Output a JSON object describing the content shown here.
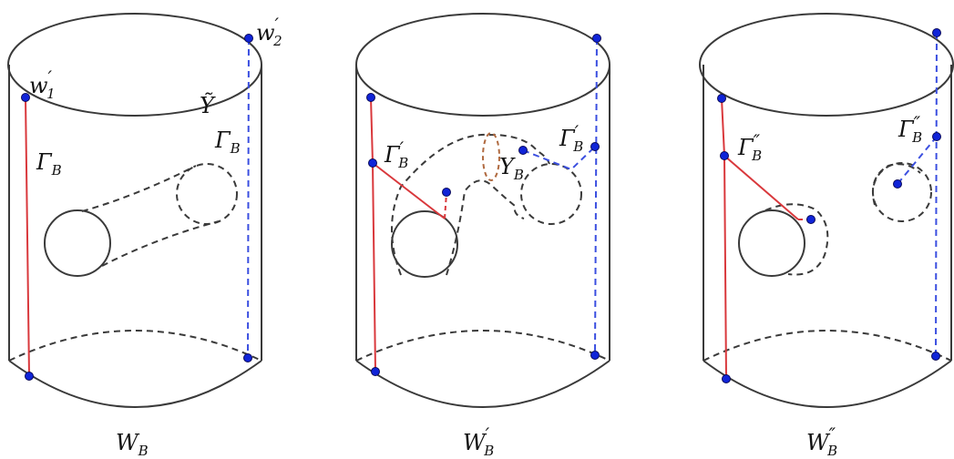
{
  "panels": [
    {
      "caption": "W",
      "caption_sub": "B",
      "caption_prime": "",
      "labels": {
        "w1": "w",
        "w1_sub": "1",
        "w2": "w",
        "w2_sub": "2",
        "y_tilde": "Ỹ",
        "gamma_left": "Γ",
        "gamma_left_sub": "B",
        "gamma_right": "Γ",
        "gamma_right_sub": "B"
      }
    },
    {
      "caption": "W",
      "caption_sub": "B",
      "caption_prime": "′",
      "labels": {
        "gamma_left": "Γ",
        "gamma_left_sub": "B",
        "gamma_right": "Γ",
        "gamma_right_sub": "B",
        "y_b": "Y",
        "y_b_sub": "B"
      }
    },
    {
      "caption": "W",
      "caption_sub": "B",
      "caption_prime": "″",
      "labels": {
        "gamma_left": "Γ",
        "gamma_left_sub": "B",
        "gamma_right": "Γ",
        "gamma_right_sub": "B"
      }
    }
  ],
  "colors": {
    "outline": "#3a3a3a",
    "red_path": "#d9383c",
    "blue_path": "#3b4fe0",
    "brown_loop": "#b06a40",
    "point": "#1024d8"
  }
}
